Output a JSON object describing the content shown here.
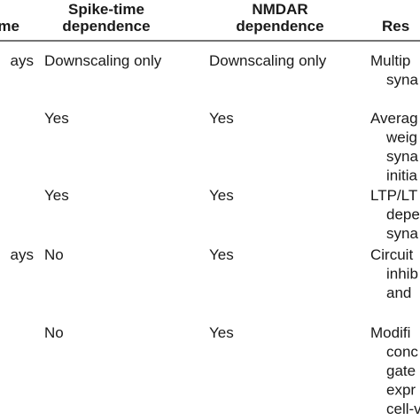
{
  "table": {
    "header": [
      [
        "me"
      ],
      [
        "Spike-time",
        "dependence"
      ],
      [
        "NMDAR",
        "dependence"
      ],
      [
        "Res"
      ]
    ],
    "rows": [
      [
        [
          "ays"
        ],
        [
          "Downscaling only"
        ],
        [
          "Downscaling only"
        ],
        [
          "Multip",
          "syna"
        ]
      ],
      [
        [],
        [
          "Yes"
        ],
        [
          "Yes"
        ],
        [
          "Averag",
          "weig",
          "syna",
          "initia"
        ]
      ],
      [
        [],
        [
          "Yes"
        ],
        [
          "Yes"
        ],
        [
          "LTP/LT",
          "depe",
          "syna"
        ]
      ],
      [
        [
          "ays"
        ],
        [
          "No"
        ],
        [
          "Yes"
        ],
        [
          "Circuit",
          "inhib",
          "and"
        ]
      ],
      [
        [],
        [
          "No"
        ],
        [
          "Yes"
        ],
        [
          "Modifi",
          "conc",
          "gate",
          "expr",
          "cell-v"
        ]
      ]
    ]
  }
}
